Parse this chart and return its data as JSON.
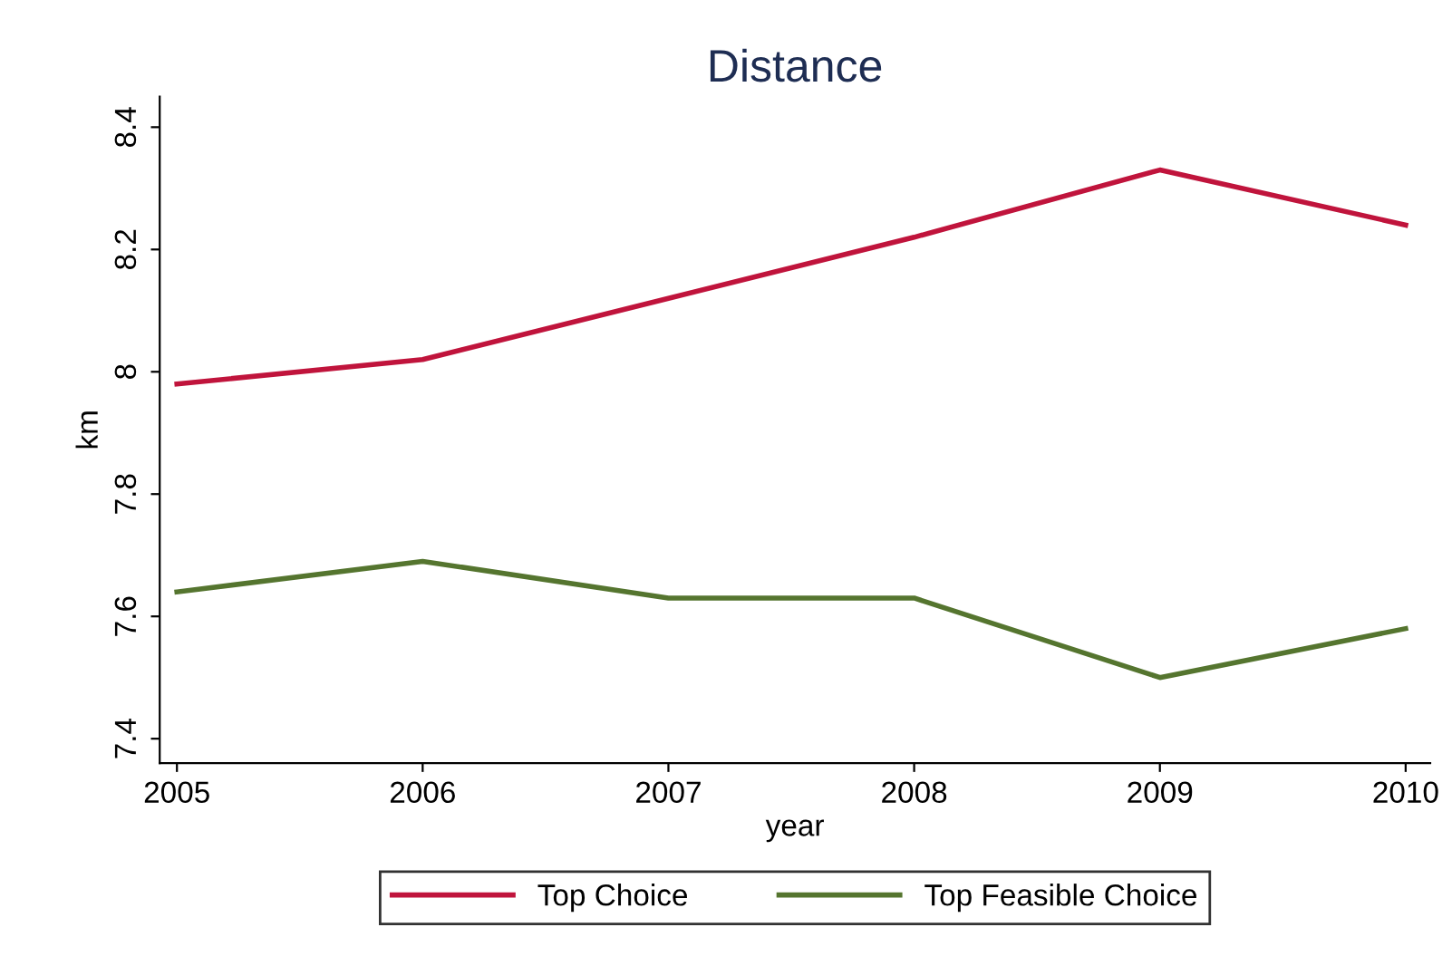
{
  "chart_data": {
    "type": "line",
    "title": "Distance",
    "xlabel": "year",
    "ylabel": "km",
    "x": [
      2005,
      2006,
      2007,
      2008,
      2009,
      2010
    ],
    "series": [
      {
        "name": "Top Choice",
        "color": "#c0143c",
        "values": [
          7.98,
          8.02,
          8.12,
          8.22,
          8.33,
          8.24
        ]
      },
      {
        "name": "Top Feasible Choice",
        "color": "#55752f",
        "values": [
          7.64,
          7.69,
          7.63,
          7.63,
          7.5,
          7.58
        ]
      }
    ],
    "xlim": [
      2004.93,
      2010.1
    ],
    "xticks": [
      2005,
      2006,
      2007,
      2008,
      2009,
      2010
    ],
    "ylim": [
      7.36,
      8.45
    ],
    "yticks": [
      7.4,
      7.6,
      7.8,
      8,
      8.2,
      8.4
    ],
    "grid": false,
    "legend": "bottom",
    "marker": "none",
    "line_style": "solid"
  }
}
